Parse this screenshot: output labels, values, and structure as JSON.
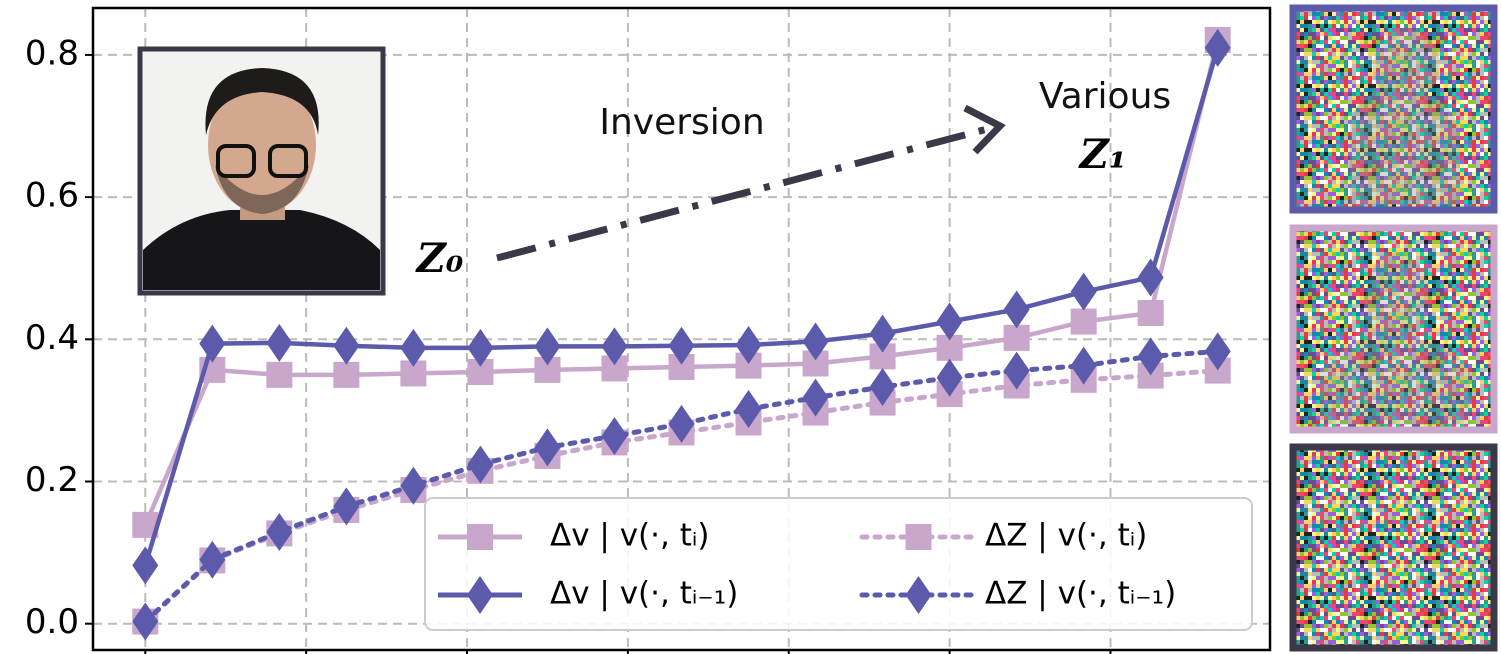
{
  "chart_data": {
    "type": "line",
    "x": [
      0,
      1,
      2,
      3,
      4,
      5,
      6,
      7,
      8,
      9,
      10,
      11,
      12,
      13,
      14,
      15,
      16
    ],
    "xlim": [
      -0.78,
      16.78
    ],
    "xticks": [
      0,
      2.4,
      4.8,
      7.2,
      9.6,
      12,
      14.4
    ],
    "ylim": [
      -0.037,
      0.866
    ],
    "yticks": [
      {
        "value": 0,
        "label": "0.0"
      },
      0.2,
      0.4,
      0.6,
      0.8
    ],
    "grid": true,
    "legend": "lower right",
    "series": [
      {
        "name": "Δv | v(·, tᵢ)",
        "color": "#c9a6cc",
        "marker": "square",
        "linestyle": "solid",
        "values": [
          0.139,
          0.357,
          0.35,
          0.35,
          0.352,
          0.354,
          0.357,
          0.359,
          0.361,
          0.363,
          0.366,
          0.376,
          0.388,
          0.402,
          0.425,
          0.437,
          0.821
        ]
      },
      {
        "name": "Δv | v(·, tᵢ₋₁)",
        "color": "#5b5aab",
        "marker": "diamond",
        "linestyle": "solid",
        "values": [
          0.082,
          0.394,
          0.395,
          0.391,
          0.388,
          0.388,
          0.39,
          0.39,
          0.391,
          0.392,
          0.397,
          0.408,
          0.425,
          0.442,
          0.467,
          0.487,
          0.81
        ]
      },
      {
        "name": "ΔZ | v(·, tᵢ)",
        "color": "#c9a6cc",
        "marker": "square",
        "linestyle": "dotted",
        "values": [
          0.003,
          0.089,
          0.127,
          0.16,
          0.188,
          0.215,
          0.236,
          0.255,
          0.269,
          0.283,
          0.297,
          0.311,
          0.323,
          0.335,
          0.343,
          0.349,
          0.356
        ]
      },
      {
        "name": "ΔZ | v(·, tᵢ₋₁)",
        "color": "#5b5aab",
        "marker": "diamond",
        "linestyle": "dotted",
        "values": [
          0.003,
          0.09,
          0.129,
          0.165,
          0.194,
          0.224,
          0.248,
          0.264,
          0.281,
          0.302,
          0.318,
          0.333,
          0.346,
          0.356,
          0.363,
          0.376,
          0.383
        ]
      }
    ],
    "annotations": {
      "inversion": "Inversion",
      "start": "Z₀",
      "various": "Various",
      "end": "Z₁"
    }
  }
}
